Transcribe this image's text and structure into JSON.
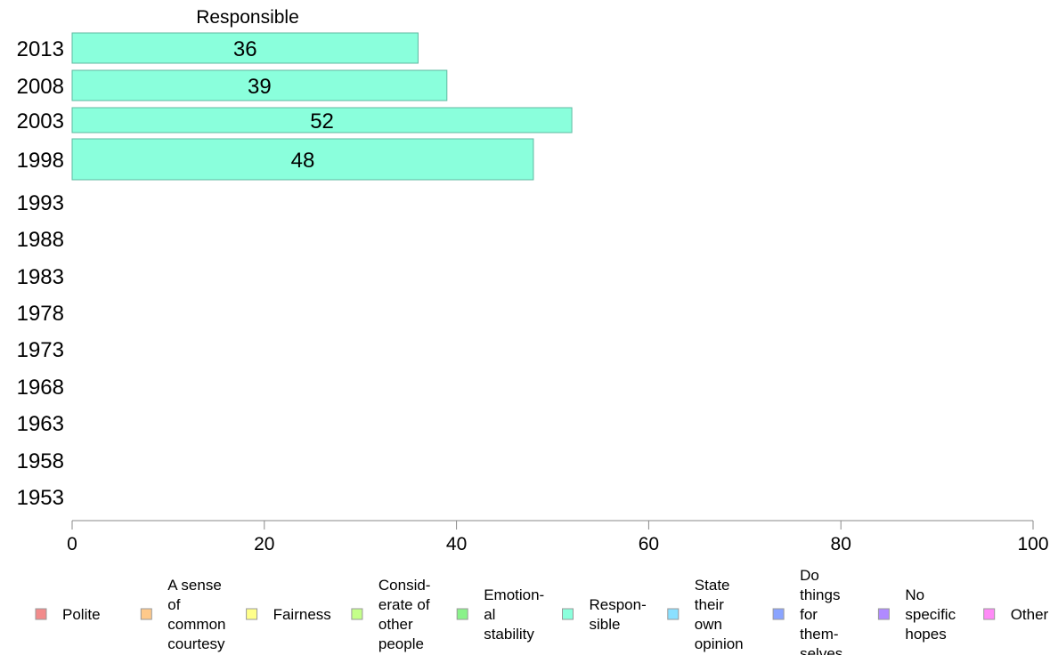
{
  "chart_data": {
    "type": "bar",
    "orientation": "horizontal",
    "title": "Responsible",
    "categories": [
      "2013",
      "2008",
      "2003",
      "1998",
      "1993",
      "1988",
      "1983",
      "1978",
      "1973",
      "1968",
      "1963",
      "1958",
      "1953"
    ],
    "series": [
      {
        "name": "Responsible",
        "color": "#8affdc",
        "values": [
          36,
          39,
          52,
          48,
          null,
          null,
          null,
          null,
          null,
          null,
          null,
          null,
          null
        ],
        "labels": [
          "36",
          "39",
          "52",
          "48"
        ]
      }
    ],
    "xlim": [
      0,
      100
    ],
    "xticks": [
      0,
      20,
      40,
      60,
      80,
      100
    ],
    "grid": false,
    "legend_position": "bottom",
    "legend": [
      {
        "lines": [
          "Polite"
        ],
        "color": "#f28b8b"
      },
      {
        "lines": [
          "A sense",
          "of",
          "common",
          "courtesy"
        ],
        "color": "#ffc98a"
      },
      {
        "lines": [
          "Fairness"
        ],
        "color": "#ffff8a"
      },
      {
        "lines": [
          "Consid-",
          "erate of",
          "other",
          "people"
        ],
        "color": "#c4ff8a"
      },
      {
        "lines": [
          "Emotion-",
          "al",
          "stability"
        ],
        "color": "#8af28a"
      },
      {
        "lines": [
          "Respon-",
          "sible"
        ],
        "color": "#8affdc"
      },
      {
        "lines": [
          "State",
          "their",
          "own",
          "opinion"
        ],
        "color": "#8ae0ff"
      },
      {
        "lines": [
          "Do",
          "things",
          "for",
          "them-",
          "selves"
        ],
        "color": "#8aa4ff"
      },
      {
        "lines": [
          "No",
          "specific",
          "hopes"
        ],
        "color": "#b08aff"
      },
      {
        "lines": [
          "Other"
        ],
        "color": "#ff8af7"
      }
    ]
  }
}
